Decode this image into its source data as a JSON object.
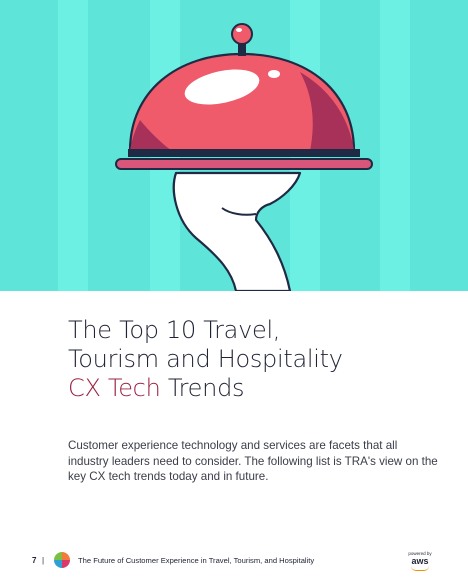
{
  "hero": {
    "background_color": "#5ee4d8",
    "stripe_color": "#6ff0e4",
    "cloche_color": "#ef5b6b",
    "tray_color": "#d8567a",
    "image_description_icon": "cloche-on-hand-illustration"
  },
  "title": {
    "line1": "The Top 10 Travel,",
    "line2": "Tourism and Hospitality",
    "accent": "CX Tech",
    "suffix": " Trends",
    "accent_color": "#9b2343"
  },
  "intro": "Customer experience technology and services are facets that all industry leaders need to consider. The following list is TRA's view on the key CX tech trends today and in future.",
  "footer": {
    "page_number": "7",
    "separator": "|",
    "text": "The Future of Customer Experience in Travel, Tourism, and Hospitality",
    "logo_icon": "tra-logo-icon",
    "aws_small": "powered by",
    "aws_word": "aws"
  }
}
